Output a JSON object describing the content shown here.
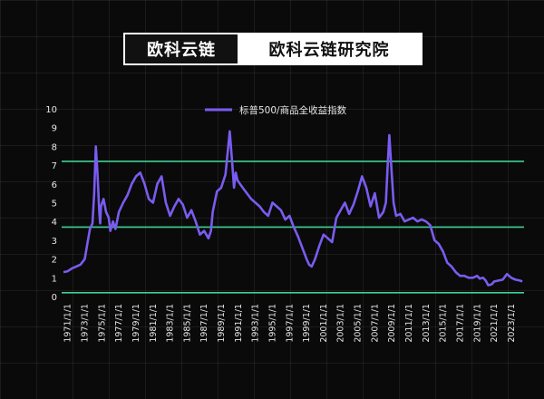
{
  "banner": {
    "brand": "欧科云链",
    "subtitle": "欧科云链研究院"
  },
  "colors": {
    "series": "#7a5cf0",
    "reference_lines": "#3fcf96",
    "axis_text": "#e6e6e6"
  },
  "chart_data": {
    "type": "line",
    "legend": "标普500/商品全收益指数",
    "legend_position": "top-center",
    "ylim": [
      0,
      10
    ],
    "y_ticks": [
      0,
      1,
      2,
      3,
      4,
      5,
      6,
      7,
      8,
      9,
      10
    ],
    "x_tick_labels": [
      "1971/1/1",
      "1973/1/1",
      "1975/1/1",
      "1977/1/1",
      "1979/1/1",
      "1981/1/1",
      "1983/1/1",
      "1985/1/1",
      "1987/1/1",
      "1989/1/1",
      "1991/1/1",
      "1993/1/1",
      "1995/1/1",
      "1997/1/1",
      "1999/1/1",
      "2001/1/1",
      "2003/1/1",
      "2005/1/1",
      "2007/1/1",
      "2009/1/1",
      "2011/1/1",
      "2013/1/1",
      "2015/1/1",
      "2017/1/1",
      "2019/1/1",
      "2021/1/1",
      "2023/1/1"
    ],
    "xlim": [
      1970.5,
      2024.5
    ],
    "reference_lines": [
      7.2,
      3.7,
      0.2
    ],
    "grid": false,
    "series": [
      {
        "x": [
          1970.5,
          1971.0,
          1971.5,
          1972.0,
          1972.5,
          1973.0,
          1973.3,
          1973.6,
          1973.9,
          1974.1,
          1974.3,
          1974.5,
          1974.7,
          1974.8,
          1974.9,
          1975.2,
          1975.5,
          1975.8,
          1976.0,
          1976.3,
          1976.6,
          1977.0,
          1977.5,
          1978.0,
          1978.5,
          1979.0,
          1979.5,
          1980.0,
          1980.5,
          1981.0,
          1981.5,
          1982.0,
          1982.5,
          1983.0,
          1983.5,
          1984.0,
          1984.5,
          1985.0,
          1985.5,
          1986.0,
          1986.5,
          1987.0,
          1987.5,
          1987.8,
          1988.0,
          1988.5,
          1989.0,
          1989.5,
          1990.0,
          1990.3,
          1990.5,
          1990.7,
          1990.9,
          1991.2,
          1991.5,
          1992.0,
          1992.5,
          1993.0,
          1993.5,
          1994.0,
          1994.5,
          1995.0,
          1995.5,
          1996.0,
          1996.5,
          1997.0,
          1997.5,
          1998.0,
          1998.5,
          1999.0,
          1999.3,
          1999.6,
          2000.0,
          2000.5,
          2001.0,
          2001.5,
          2002.0,
          2002.5,
          2003.0,
          2003.5,
          2004.0,
          2004.5,
          2005.0,
          2005.5,
          2006.0,
          2006.5,
          2007.0,
          2007.5,
          2008.0,
          2008.3,
          2008.5,
          2008.7,
          2008.9,
          2009.2,
          2009.5,
          2010.0,
          2010.5,
          2011.0,
          2011.5,
          2012.0,
          2012.5,
          2013.0,
          2013.5,
          2014.0,
          2014.5,
          2015.0,
          2015.5,
          2016.0,
          2016.5,
          2017.0,
          2017.5,
          2018.0,
          2018.5,
          2019.0,
          2019.3,
          2019.7,
          2020.0,
          2020.3,
          2020.7,
          2021.0,
          2021.5,
          2022.0,
          2022.5,
          2023.0,
          2023.5,
          2024.0,
          2024.3
        ],
        "values": [
          1.3,
          1.35,
          1.5,
          1.6,
          1.7,
          2.0,
          2.8,
          3.6,
          3.9,
          5.5,
          8.0,
          6.5,
          4.5,
          3.9,
          4.8,
          5.2,
          4.5,
          4.2,
          3.5,
          4.0,
          3.6,
          4.5,
          5.0,
          5.4,
          6.0,
          6.4,
          6.6,
          6.0,
          5.2,
          5.0,
          6.0,
          6.4,
          5.0,
          4.3,
          4.8,
          5.2,
          4.9,
          4.2,
          4.6,
          4.0,
          3.3,
          3.5,
          3.1,
          3.5,
          4.5,
          5.6,
          5.8,
          6.5,
          8.8,
          7.0,
          5.8,
          6.6,
          6.2,
          6.0,
          5.8,
          5.5,
          5.2,
          5.0,
          4.8,
          4.5,
          4.3,
          5.0,
          4.8,
          4.6,
          4.1,
          4.3,
          3.7,
          3.2,
          2.6,
          2.0,
          1.7,
          1.6,
          2.0,
          2.7,
          3.3,
          3.1,
          2.9,
          4.2,
          4.6,
          5.0,
          4.4,
          4.9,
          5.6,
          6.4,
          5.8,
          4.8,
          5.5,
          4.2,
          4.5,
          5.0,
          6.9,
          8.6,
          7.2,
          5.0,
          4.3,
          4.4,
          4.0,
          4.1,
          4.2,
          4.0,
          4.1,
          4.0,
          3.8,
          3.0,
          2.8,
          2.4,
          1.8,
          1.6,
          1.3,
          1.1,
          1.1,
          1.0,
          1.0,
          1.1,
          0.95,
          1.0,
          0.85,
          0.6,
          0.65,
          0.8,
          0.85,
          0.9,
          1.2,
          1.0,
          0.9,
          0.85,
          0.8
        ]
      }
    ]
  }
}
